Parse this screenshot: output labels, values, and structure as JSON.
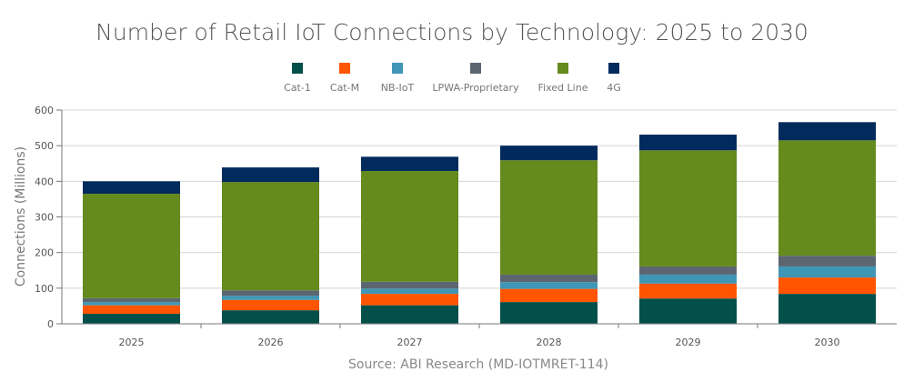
{
  "chart_data": {
    "type": "bar",
    "stacked": true,
    "title": "Number of Retail IoT Connections by Technology: 2025 to 2030",
    "ylabel": "Connections (Millions)",
    "xlabel": "",
    "source": "Source: ABI Research (MD-IOTMRET-114)",
    "ylim": [
      0,
      600
    ],
    "yticks": [
      0,
      100,
      200,
      300,
      400,
      500,
      600
    ],
    "grid": true,
    "legend_position": "top",
    "categories": [
      "2025",
      "2026",
      "2027",
      "2028",
      "2029",
      "2030"
    ],
    "series": [
      {
        "name": "Cat-1",
        "color": "#034f4a",
        "values": [
          28,
          38,
          52,
          61,
          71,
          84
        ]
      },
      {
        "name": "Cat-M",
        "color": "#ff5500",
        "values": [
          24,
          29,
          32,
          37,
          42,
          46
        ]
      },
      {
        "name": "NB-IoT",
        "color": "#4096b5",
        "values": [
          9,
          12,
          15,
          19,
          25,
          31
        ]
      },
      {
        "name": "LPWA-Proprietary",
        "color": "#5c6670",
        "values": [
          11,
          15,
          19,
          21,
          23,
          30
        ]
      },
      {
        "name": "Fixed Line",
        "color": "#658a1d",
        "values": [
          293,
          304,
          311,
          321,
          326,
          324
        ]
      },
      {
        "name": "4G",
        "color": "#002b5c",
        "values": [
          35,
          41,
          40,
          41,
          44,
          51
        ]
      }
    ]
  }
}
